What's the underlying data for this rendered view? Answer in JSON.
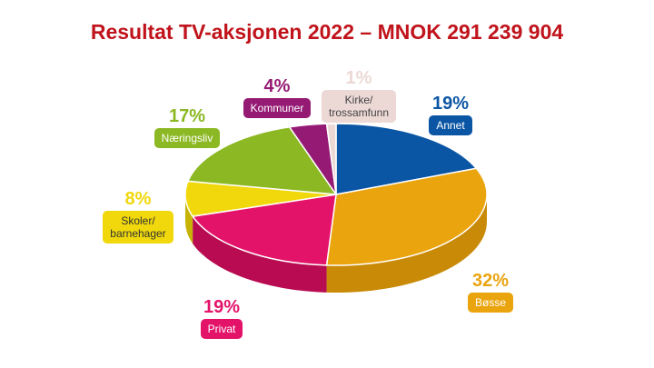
{
  "chart_data": {
    "type": "pie",
    "title": "Resultat TV-aksjonen 2022 – MNOK 291 239 904",
    "slices": [
      {
        "label": "Annet",
        "percent_label": "19%",
        "value": 19,
        "color": "#0b56a4",
        "side": "#07407c"
      },
      {
        "label": "Bøsse",
        "percent_label": "32%",
        "value": 32,
        "color": "#eaa40e",
        "side": "#c98a07"
      },
      {
        "label": "Privat",
        "percent_label": "19%",
        "value": 19,
        "color": "#e3136a",
        "side": "#b80b52"
      },
      {
        "label": "Skoler/\nbarnehager",
        "percent_label": "8%",
        "value": 8,
        "color": "#f0d80c",
        "side": "#c7b306"
      },
      {
        "label": "Næringsliv",
        "percent_label": "17%",
        "value": 17,
        "color": "#8cb823",
        "side": "#6c9015"
      },
      {
        "label": "Kommuner",
        "percent_label": "4%",
        "value": 4,
        "color": "#951a74",
        "side": "#73115a"
      },
      {
        "label": "Kirke/\ntrossamfunn",
        "percent_label": "1%",
        "value": 1,
        "color": "#ecd9d5",
        "side": "#c9b3ae"
      }
    ],
    "pct_colors": [
      "#0b56a4",
      "#eaa40e",
      "#e3136a",
      "#f0d80c",
      "#8cb823",
      "#951a74",
      "#ecd9d5"
    ],
    "pill_text_colors": [
      "#ffffff",
      "#ffffff",
      "#ffffff",
      "#333333",
      "#ffffff",
      "#ffffff",
      "#444444"
    ]
  }
}
